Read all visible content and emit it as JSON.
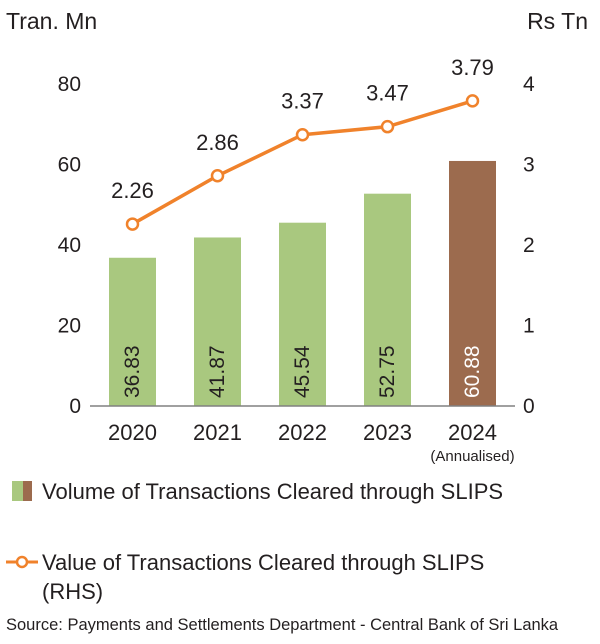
{
  "chart_data": {
    "type": "bar",
    "categories": [
      "2020",
      "2021",
      "2022",
      "2023",
      "2024"
    ],
    "category_notes": [
      "",
      "",
      "",
      "",
      "(Annualised)"
    ],
    "series": [
      {
        "name": "Volume of Transactions Cleared through SLIPS",
        "type": "bar",
        "axis": "left",
        "values": [
          36.83,
          41.87,
          45.54,
          52.75,
          60.88
        ],
        "labels": [
          "36.83",
          "41.87",
          "45.54",
          "52.75",
          "60.88"
        ]
      },
      {
        "name": "Value of Transactions Cleared through SLIPS (RHS)",
        "type": "line",
        "axis": "right",
        "values": [
          2.26,
          2.86,
          3.37,
          3.47,
          3.79
        ],
        "labels": [
          "2.26",
          "2.86",
          "3.37",
          "3.47",
          "3.79"
        ]
      }
    ],
    "y_left": {
      "label": "Tran. Mn",
      "range": [
        0,
        80
      ],
      "ticks": [
        "0",
        "20",
        "40",
        "60",
        "80"
      ]
    },
    "y_right": {
      "label": "Rs Tn",
      "range": [
        0,
        4
      ],
      "ticks": [
        "0",
        "1",
        "2",
        "3",
        "4"
      ]
    },
    "grid": false,
    "legend_position": "bottom",
    "colors": {
      "bar": "#a9c87f",
      "bar_highlight": "#9c6b4e",
      "line": "#f0822b",
      "text": "#231f20",
      "axis": "#808080"
    }
  },
  "legend": {
    "volume": "Volume of Transactions Cleared through SLIPS",
    "value": "Value of Transactions Cleared through SLIPS (RHS)"
  },
  "source": "Source: Payments and Settlements Department - Central Bank of Sri Lanka"
}
